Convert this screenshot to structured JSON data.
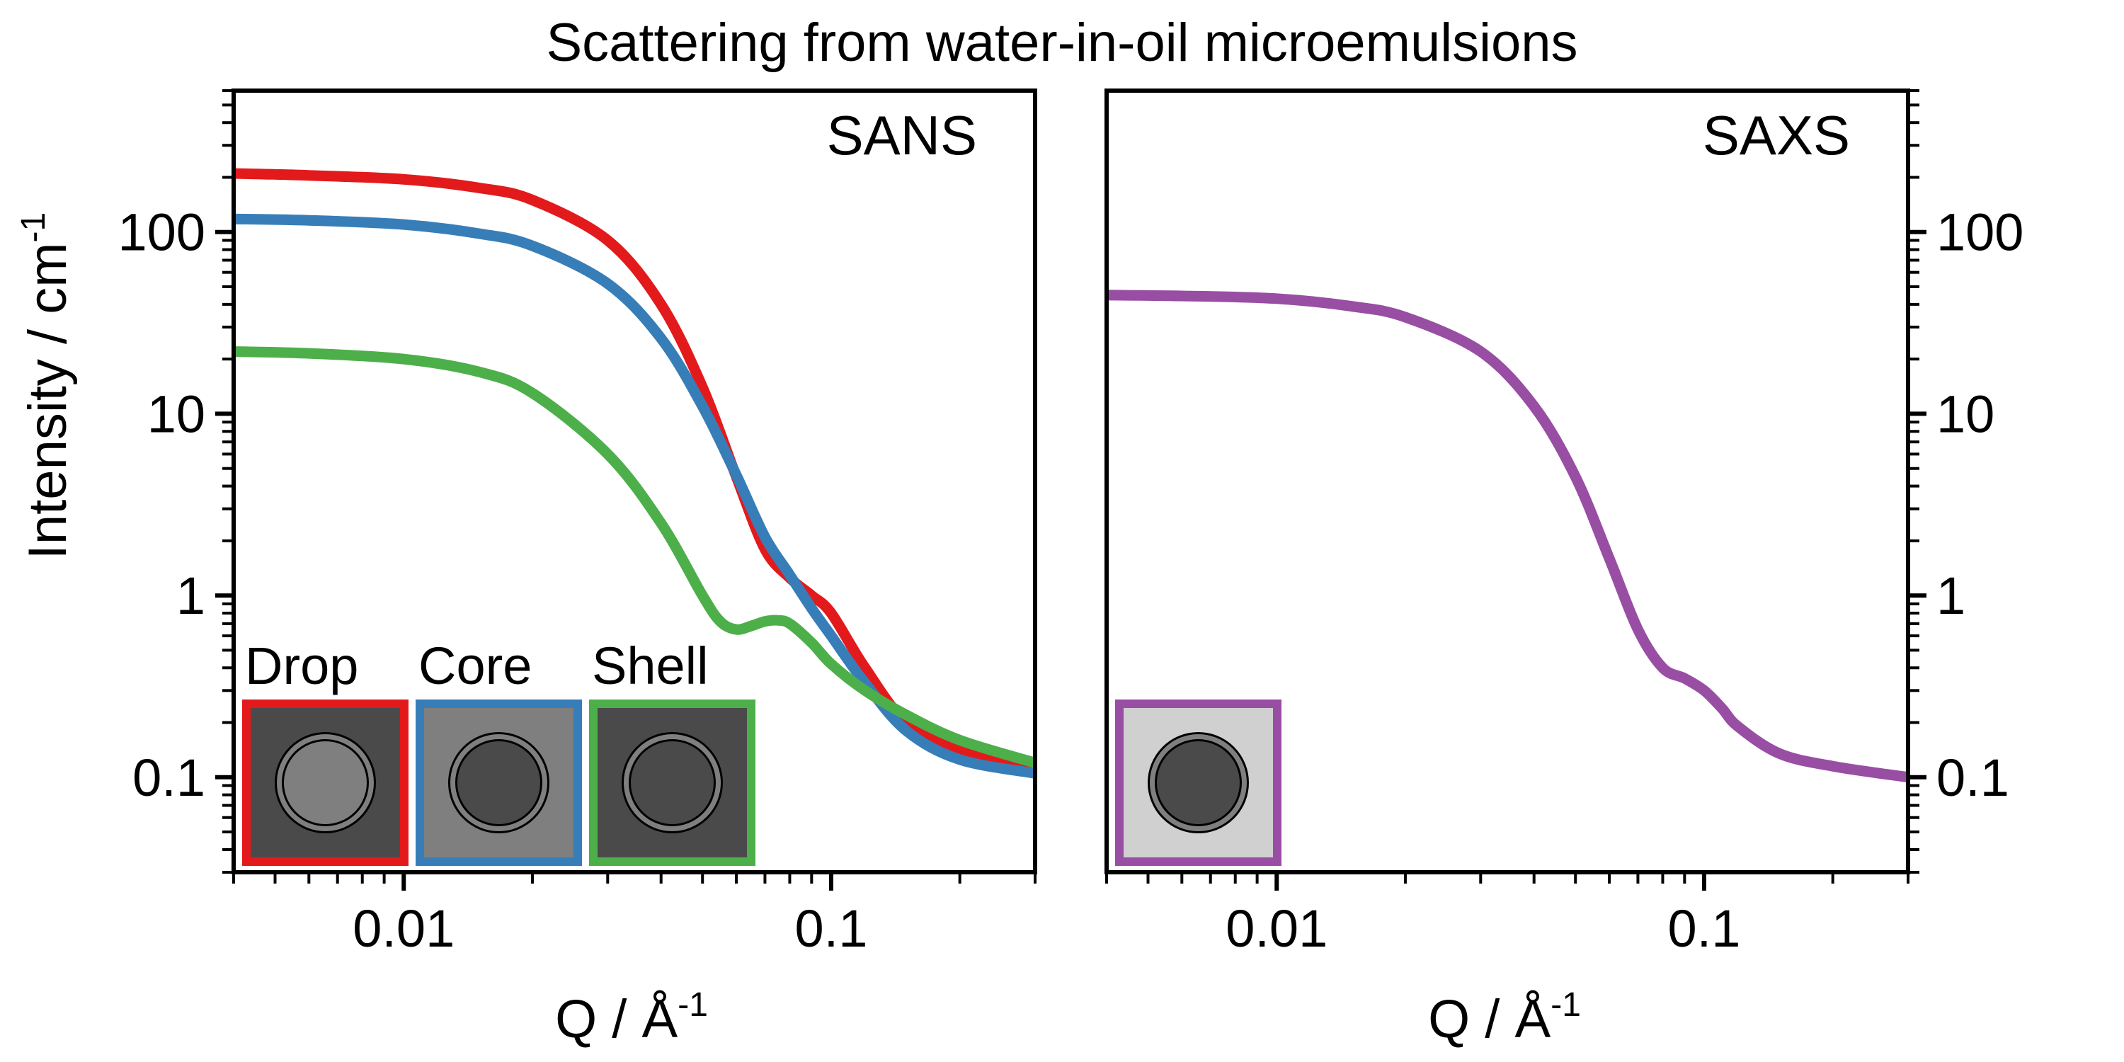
{
  "title": "Scattering from water-in-oil microemulsions",
  "ylabel": "Intensity / cm",
  "ylabel_sup": "-1",
  "xlabel": "Q / Å",
  "xlabel_sup": "-1",
  "chart_data": [
    {
      "type": "line",
      "panel_label": "SANS",
      "xscale": "log",
      "yscale": "log",
      "xlim": [
        0.004,
        0.3
      ],
      "ylim": [
        0.03,
        600
      ],
      "x_ticks": [
        0.01,
        0.1
      ],
      "x_tick_labels": [
        "0.01",
        "0.1"
      ],
      "y_ticks": [
        0.1,
        1,
        10,
        100
      ],
      "y_tick_labels": [
        "0.1",
        "1",
        "10",
        "100"
      ],
      "y_tick_side": "left",
      "series": [
        {
          "color": "#e31a1c",
          "x": [
            0.004,
            0.006,
            0.01,
            0.015,
            0.02,
            0.03,
            0.04,
            0.05,
            0.06,
            0.07,
            0.08,
            0.09,
            0.1,
            0.12,
            0.15,
            0.2,
            0.3
          ],
          "y": [
            210,
            205,
            195,
            175,
            150,
            90,
            40,
            14,
            4.5,
            1.8,
            1.25,
            1.0,
            0.8,
            0.4,
            0.2,
            0.14,
            0.11
          ]
        },
        {
          "color": "#377eb8",
          "x": [
            0.004,
            0.006,
            0.01,
            0.015,
            0.02,
            0.03,
            0.04,
            0.05,
            0.06,
            0.07,
            0.08,
            0.09,
            0.1,
            0.12,
            0.15,
            0.2,
            0.3
          ],
          "y": [
            118,
            116,
            110,
            98,
            84,
            52,
            26,
            11,
            4.6,
            2.1,
            1.3,
            0.85,
            0.6,
            0.33,
            0.18,
            0.125,
            0.105
          ]
        },
        {
          "color": "#4daf4a",
          "x": [
            0.004,
            0.006,
            0.01,
            0.015,
            0.02,
            0.03,
            0.04,
            0.05,
            0.055,
            0.06,
            0.065,
            0.07,
            0.075,
            0.08,
            0.09,
            0.1,
            0.12,
            0.15,
            0.2,
            0.3
          ],
          "y": [
            22,
            21.5,
            20,
            17,
            13,
            6,
            2.5,
            1.0,
            0.72,
            0.65,
            0.68,
            0.72,
            0.73,
            0.7,
            0.55,
            0.42,
            0.3,
            0.22,
            0.16,
            0.12
          ]
        }
      ],
      "insets": [
        {
          "label": "Drop",
          "border": "#e31a1c",
          "background": "#4a4a4a",
          "core": "#7f7f7f",
          "shell": "#7f7f7f"
        },
        {
          "label": "Core",
          "border": "#377eb8",
          "background": "#7f7f7f",
          "core": "#4a4a4a",
          "shell": "#7f7f7f"
        },
        {
          "label": "Shell",
          "border": "#4daf4a",
          "background": "#4a4a4a",
          "core": "#4a4a4a",
          "shell": "#7f7f7f"
        }
      ]
    },
    {
      "type": "line",
      "panel_label": "SAXS",
      "xscale": "log",
      "yscale": "log",
      "xlim": [
        0.004,
        0.3
      ],
      "ylim": [
        0.03,
        600
      ],
      "x_ticks": [
        0.01,
        0.1
      ],
      "x_tick_labels": [
        "0.01",
        "0.1"
      ],
      "y_ticks": [
        0.1,
        1,
        10,
        100
      ],
      "y_tick_labels": [
        "0.1",
        "1",
        "10",
        "100"
      ],
      "y_tick_side": "right",
      "series": [
        {
          "color": "#984ea3",
          "x": [
            0.004,
            0.006,
            0.01,
            0.015,
            0.02,
            0.03,
            0.04,
            0.05,
            0.06,
            0.07,
            0.08,
            0.09,
            0.1,
            0.11,
            0.12,
            0.15,
            0.2,
            0.3
          ],
          "y": [
            45,
            44.5,
            43,
            39,
            34,
            22,
            11,
            4.5,
            1.6,
            0.65,
            0.4,
            0.35,
            0.3,
            0.24,
            0.19,
            0.135,
            0.115,
            0.1
          ]
        }
      ],
      "insets": [
        {
          "label": "",
          "border": "#984ea3",
          "background": "#d0d0d0",
          "core": "#4a4a4a",
          "shell": "#7f7f7f"
        }
      ]
    }
  ]
}
